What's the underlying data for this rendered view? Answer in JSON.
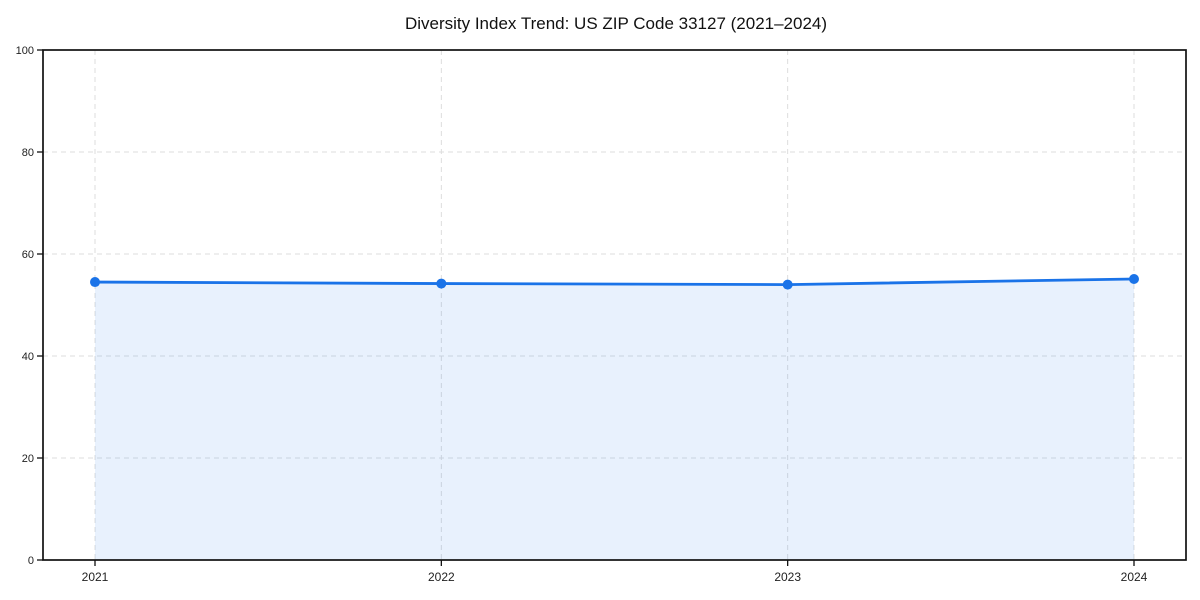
{
  "chart_data": {
    "type": "area",
    "title": "Diversity Index Trend: US ZIP Code 33127 (2021–2024)",
    "x": [
      "2021",
      "2022",
      "2023",
      "2024"
    ],
    "series": [
      {
        "name": "Diversity Index",
        "values": [
          54.5,
          54.2,
          54.0,
          55.1
        ]
      }
    ],
    "xlabel": "",
    "ylabel": "",
    "ylim": [
      0,
      100
    ],
    "yticks": [
      0,
      20,
      40,
      60,
      80,
      100
    ],
    "grid": true,
    "grid_style": "dashed",
    "legend_position": "none",
    "marker": "circle",
    "colors": {
      "line": "#1a73e8",
      "marker": "#1a73e8",
      "fill": "rgba(26,115,232,0.10)",
      "grid": "#dddddd",
      "spine": "#111111",
      "tick_label": "#222222",
      "title": "#111111",
      "background": "#ffffff"
    }
  }
}
